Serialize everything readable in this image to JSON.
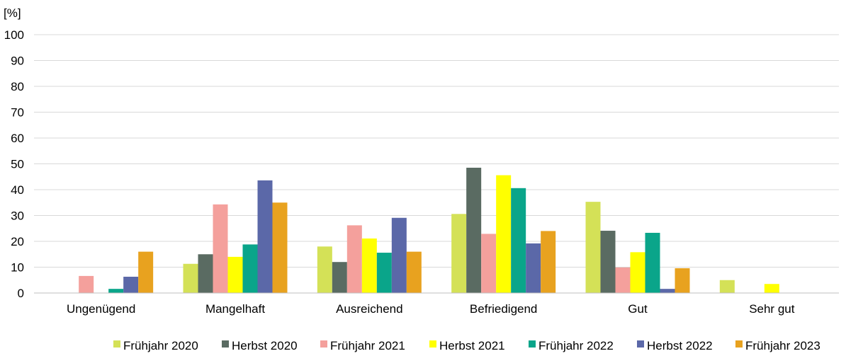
{
  "chart_data": {
    "type": "bar",
    "unit_label": "[%]",
    "ylim": [
      0,
      100
    ],
    "yticks": [
      0,
      10,
      20,
      30,
      40,
      50,
      60,
      70,
      80,
      90,
      100
    ],
    "grid": true,
    "legend_position": "bottom",
    "categories": [
      "Ungenügend",
      "Mangelhaft",
      "Ausreichend",
      "Befriedigend",
      "Gut",
      "Sehr gut"
    ],
    "series": [
      {
        "name": "Frühjahr 2020",
        "color": "#d4e157",
        "values": [
          0,
          11.3,
          18,
          30.6,
          35.3,
          5
        ]
      },
      {
        "name": "Herbst 2020",
        "color": "#5a6b62",
        "values": [
          0,
          15,
          12,
          48.5,
          24.1,
          0
        ]
      },
      {
        "name": "Frühjahr 2021",
        "color": "#f4a09c",
        "values": [
          6.6,
          34.3,
          26.2,
          22.9,
          9.9,
          0
        ]
      },
      {
        "name": "Herbst 2021",
        "color": "#ffff00",
        "values": [
          0,
          14,
          21.1,
          45.6,
          15.8,
          3.5
        ]
      },
      {
        "name": "Frühjahr 2022",
        "color": "#0aa58a",
        "values": [
          1.6,
          18.8,
          15.6,
          40.6,
          23.3,
          0
        ]
      },
      {
        "name": "Herbst 2022",
        "color": "#5b68a8",
        "values": [
          6.3,
          43.6,
          29.1,
          19.2,
          1.6,
          0
        ]
      },
      {
        "name": "Frühjahr 2023",
        "color": "#e8a21f",
        "values": [
          16,
          35,
          16,
          24,
          9.6,
          0
        ]
      }
    ]
  }
}
